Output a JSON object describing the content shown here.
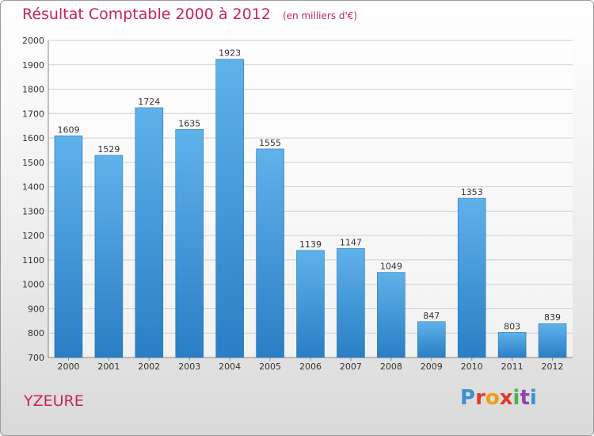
{
  "title": "Résultat Comptable 2000 à 2012",
  "subtitle": "(en milliers d'€)",
  "city": "YZEURE",
  "logo": {
    "text": "Proxiti",
    "letters": [
      "P",
      "r",
      "o",
      "x",
      "i",
      "t",
      "i"
    ],
    "colors": [
      "#3a8fd8",
      "#e03a2a",
      "#f39c12",
      "#e03a2a",
      "#4caf50",
      "#8e44ad",
      "#3a8fd8"
    ]
  },
  "chart_data": {
    "type": "bar",
    "title": "Résultat Comptable 2000 à 2012",
    "subtitle": "(en milliers d'€)",
    "categories": [
      "2000",
      "2001",
      "2002",
      "2003",
      "2004",
      "2005",
      "2006",
      "2007",
      "2008",
      "2009",
      "2010",
      "2011",
      "2012"
    ],
    "values": [
      1609,
      1529,
      1724,
      1635,
      1923,
      1555,
      1139,
      1147,
      1049,
      847,
      1353,
      803,
      839
    ],
    "ylim": [
      700,
      2000
    ],
    "yticks": [
      700,
      800,
      900,
      1000,
      1100,
      1200,
      1300,
      1400,
      1500,
      1600,
      1700,
      1800,
      1900,
      2000
    ],
    "grid": true,
    "bar_color": "#4aa3e0",
    "xlabel": "",
    "ylabel": ""
  }
}
